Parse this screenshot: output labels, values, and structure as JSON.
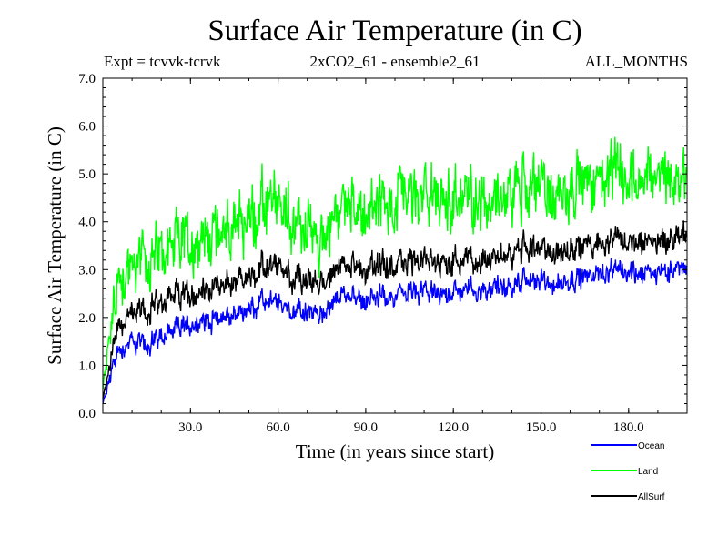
{
  "chart_data": {
    "type": "line",
    "title": "Surface Air Temperature (in C)",
    "subtitle_left": "Expt = tcvvk-tcrvk",
    "subtitle_center": "2xCO2_61 - ensemble2_61",
    "subtitle_right": "ALL_MONTHS",
    "xlabel": "Time (in years since start)",
    "ylabel": "Surface Air Temperature (in C)",
    "xlim": [
      0,
      200
    ],
    "ylim": [
      0,
      7
    ],
    "xticks": [
      "30.0",
      "60.0",
      "90.0",
      "120.0",
      "150.0",
      "180.0"
    ],
    "xtick_values": [
      30,
      60,
      90,
      120,
      150,
      180
    ],
    "yticks": [
      "0.0",
      "1.0",
      "2.0",
      "3.0",
      "4.0",
      "5.0",
      "6.0",
      "7.0"
    ],
    "ytick_values": [
      0,
      1,
      2,
      3,
      4,
      5,
      6,
      7
    ],
    "grid": false,
    "legend_position": "bottom-right",
    "x": [
      0,
      5,
      10,
      15,
      20,
      25,
      30,
      35,
      40,
      45,
      50,
      55,
      60,
      65,
      70,
      75,
      80,
      85,
      90,
      95,
      100,
      105,
      110,
      115,
      120,
      125,
      130,
      135,
      140,
      145,
      150,
      155,
      160,
      165,
      170,
      175,
      180,
      185,
      190,
      195,
      200
    ],
    "series": [
      {
        "name": "Ocean",
        "color": "#0000ff",
        "amplitude": 0.18,
        "values": [
          0.2,
          1.3,
          1.5,
          1.4,
          1.6,
          1.75,
          1.85,
          1.95,
          2.0,
          2.05,
          2.15,
          2.3,
          2.3,
          2.15,
          2.1,
          2.05,
          2.4,
          2.45,
          2.35,
          2.4,
          2.45,
          2.5,
          2.55,
          2.45,
          2.55,
          2.6,
          2.55,
          2.7,
          2.6,
          2.8,
          2.75,
          2.7,
          2.8,
          2.85,
          2.95,
          2.9,
          3.0,
          2.9,
          2.95,
          3.0,
          3.1
        ]
      },
      {
        "name": "Land",
        "color": "#00ff00",
        "amplitude": 0.5,
        "values": [
          0.5,
          2.8,
          3.1,
          3.2,
          3.3,
          3.5,
          3.6,
          3.7,
          3.8,
          3.9,
          4.0,
          4.2,
          4.3,
          4.0,
          3.8,
          3.6,
          4.3,
          4.4,
          4.2,
          4.3,
          4.4,
          4.45,
          4.5,
          4.4,
          4.5,
          4.55,
          4.5,
          4.6,
          4.6,
          4.7,
          4.7,
          4.6,
          4.8,
          4.8,
          5.0,
          4.9,
          5.0,
          4.9,
          5.0,
          4.9,
          5.1
        ]
      },
      {
        "name": "AllSurf",
        "color": "#000000",
        "amplitude": 0.22,
        "values": [
          0.3,
          1.8,
          2.1,
          2.1,
          2.3,
          2.45,
          2.5,
          2.6,
          2.65,
          2.75,
          2.8,
          3.0,
          3.05,
          2.85,
          2.75,
          2.7,
          3.05,
          3.1,
          3.0,
          3.05,
          3.1,
          3.15,
          3.2,
          3.1,
          3.2,
          3.25,
          3.2,
          3.35,
          3.3,
          3.45,
          3.4,
          3.35,
          3.45,
          3.5,
          3.6,
          3.55,
          3.65,
          3.55,
          3.6,
          3.65,
          3.8
        ]
      }
    ]
  }
}
